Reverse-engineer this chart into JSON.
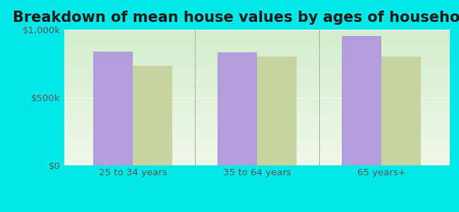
{
  "title": "Breakdown of mean house values by ages of householders",
  "categories": [
    "25 to 34 years",
    "35 to 64 years",
    "65 years+"
  ],
  "series": {
    "Maui County": [
      840000,
      835000,
      955000
    ],
    "Hawaii": [
      735000,
      800000,
      800000
    ]
  },
  "bar_colors": {
    "Maui County": "#b39ddb",
    "Hawaii": "#c8d4a0"
  },
  "ylim": [
    0,
    1000000
  ],
  "yticks": [
    0,
    500000,
    1000000
  ],
  "ytick_labels": [
    "$0",
    "$500k",
    "$1,000k"
  ],
  "background_color": "#00e8e8",
  "plot_bg_top": "#d4edcc",
  "plot_bg_bottom": "#eef8ea",
  "title_fontsize": 15,
  "legend_fontsize": 10,
  "tick_fontsize": 9.5,
  "bar_width": 0.32
}
